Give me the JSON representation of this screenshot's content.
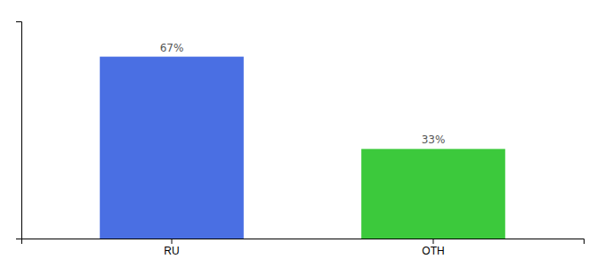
{
  "chart_data": {
    "type": "bar",
    "categories": [
      "RU",
      "OTH"
    ],
    "values": [
      67,
      33
    ],
    "colors": [
      "#4A6FE3",
      "#3CC93C"
    ],
    "data_labels": true,
    "value_labels": [
      "67%",
      "33%"
    ],
    "ylim": [
      0,
      80
    ],
    "grid": false,
    "tick_labels": "x"
  }
}
